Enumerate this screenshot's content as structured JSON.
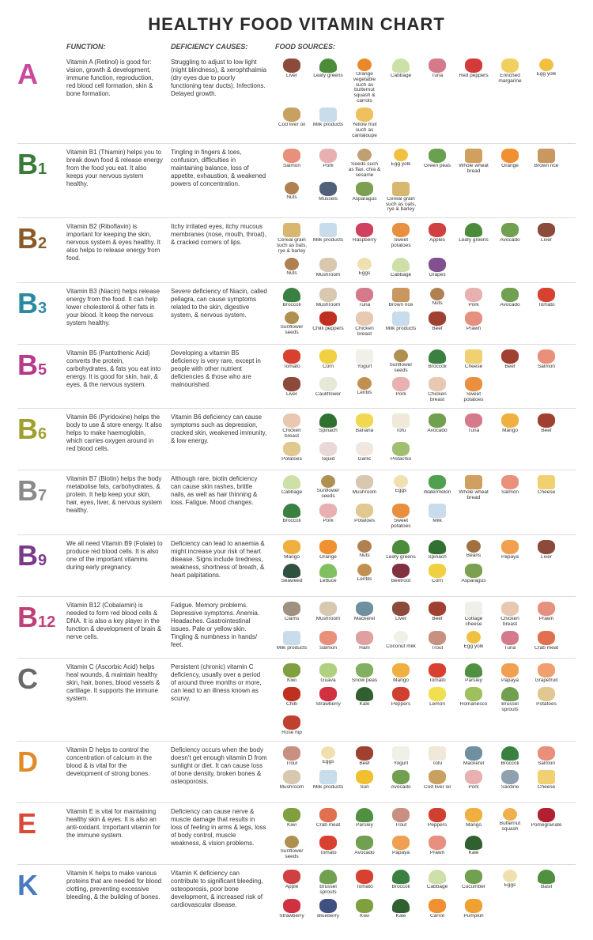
{
  "title": "HEALTHY FOOD VITAMIN CHART",
  "columns": {
    "function": "FUNCTION:",
    "deficiency": "DEFICIENCY CAUSES:",
    "food": "FOOD SOURCES:"
  },
  "food_colors": {
    "Liver": "#8b4a3a",
    "Leafy greens": "#4a8c3a",
    "Orange vegetable such as butternut squash & carrots": "#e88a2a",
    "Cabbage": "#cde0a8",
    "Tuna": "#d47a8a",
    "Red peppers": "#d43a3a",
    "Enriched margarine": "#f2d060",
    "Egg yolk": "#f2c040",
    "Cod liver oil": "#c8a060",
    "Milk products": "#c8dcec",
    "Yellow fruit such as cantaloupe": "#f0c060",
    "Salmon": "#e8907a",
    "Pork": "#e8b0b0",
    "Seeds such as flax, chia & sesame": "#c0a070",
    "Green peas": "#6aa050",
    "Whole wheat bread": "#d0a060",
    "Orange": "#f09030",
    "Brown rice": "#c89860",
    "Nuts": "#b08050",
    "Mussels": "#50607a",
    "Asparagus": "#7aa050",
    "Cereal grain such as oats, rye & barley": "#d8b870",
    "Cereal grain such as bats, rye & barley": "#d8b870",
    "Raspberry": "#d04060",
    "Sweet potatoes": "#e89040",
    "Apples": "#d04040",
    "Avocado": "#70a050",
    "Eggs": "#f0e0b0",
    "Mushroom": "#d8c8b0",
    "Grapes": "#805090",
    "Broccoli": "#3a8040",
    "Sunflower seeds": "#b09050",
    "Tomato": "#d84030",
    "Chilli peppers": "#c03020",
    "Chicken breast": "#e8c8b0",
    "Beef": "#a04030",
    "Prawn": "#e89080",
    "Yogurt": "#f0f0e8",
    "Corn": "#f0d040",
    "Cheese": "#f0d070",
    "Cauliflower": "#e8e8d8",
    "Lentils": "#c09050",
    "Banana": "#f0d850",
    "Spinach": "#307030",
    "Tofu": "#f0e8d8",
    "Mango": "#f0b040",
    "Potatoes": "#e0c890",
    "Squid": "#e8d8d8",
    "Garlic": "#f0e8e0",
    "Pistachio": "#a0c070",
    "Watermelon": "#50a050",
    "Whole wheat bread2": "#d0a060",
    "Milk": "#c8dcec",
    "Papaya": "#f0a050",
    "Lettuce": "#80c060",
    "Beans": "#a07040",
    "Seaweed": "#305040",
    "Beetroot": "#803040",
    "Clams": "#a09080",
    "Mackerel": "#7090a0",
    "Cottage cheese": "#f0f0e8",
    "Coconut milk": "#f0f0e8",
    "Ham": "#e0a0a0",
    "Trout": "#c89080",
    "Crab meat": "#e07050",
    "Kiwi": "#80a040",
    "Guava": "#b0d080",
    "Snow peas": "#80b060",
    "Parsley": "#509040",
    "Grapefruit": "#f0a070",
    "Chilli": "#c03020",
    "Strawberry": "#d03040",
    "Kale": "#306030",
    "Lemon": "#f0e050",
    "Romanesco": "#a0c060",
    "Brussel sprouts": "#70a050",
    "Rose hip": "#c04030",
    "Sun": "#f0c030",
    "Sardine": "#90a0b0",
    "Butternut squash": "#f0b050",
    "Peppers": "#d04030",
    "Pomegranate": "#b02030",
    "Apple": "#d04040",
    "Cucumber": "#70a050",
    "Basil": "#509040",
    "Blueberry": "#405080",
    "Carrot": "#f09030",
    "Pumpkin": "#f0a030"
  },
  "vitamins": [
    {
      "letter": "A",
      "sub": "",
      "color": "#c94a9c",
      "function": "Vitamin A (Retinol) is good for: vision, growth & development, immune function, reproduction, red blood cell formation, skin & bone formation.",
      "deficiency": "Struggling to adjust to low light (night blindness), & xerophthalmia (dry eyes due to poorly functioning tear ducts). Infections. Delayed growth.",
      "foods": [
        "Liver",
        "Leafy greens",
        "Orange vegetable such as butternut squash & carrots",
        "Cabbage",
        "Tuna",
        "Red peppers",
        "Enriched margarine",
        "Egg yolk",
        "Cod liver oil",
        "Milk products",
        "Yellow fruit such as cantaloupe"
      ]
    },
    {
      "letter": "B",
      "sub": "1",
      "color": "#3a7a3a",
      "function": "Vitamin B1 (Thiamin) helps you to break down food & release energy from the food you eat. It also keeps your nervous system healthy.",
      "deficiency": "Tingling in fingers & toes, confusion, difficulties in maintaining balance, loss of appetite, exhaustion, & weakened powers of concentration.",
      "foods": [
        "Salmon",
        "Pork",
        "Seeds such as flax, chia & sesame",
        "Egg yolk",
        "Green peas",
        "Whole wheat bread",
        "Orange",
        "Brown rice",
        "Nuts",
        "Mussels",
        "Asparagus",
        "Cereal grain such as oats, rye & barley"
      ]
    },
    {
      "letter": "B",
      "sub": "2",
      "color": "#8a5a2a",
      "function": "Vitamin B2 (Riboflavin) is important for keeping the skin, nervous system & eyes healthy. It also helps to release energy from food.",
      "deficiency": "Itchy irritated eyes, itchy mucous membranes (nose, mouth, throat), & cracked corners of lips.",
      "foods": [
        "Cereal grain such as bats, rye & barley",
        "Milk products",
        "Raspberry",
        "Sweet potatoes",
        "Apples",
        "Leafy greens",
        "Avocado",
        "Liver",
        "Nuts",
        "Mushroom",
        "Eggs",
        "Cabbage",
        "Grapes"
      ]
    },
    {
      "letter": "B",
      "sub": "3",
      "color": "#2a8aa0",
      "function": "Vitamin B3 (Niacin) helps release energy from the food. It can help lower cholesterol & other fats in your blood. It keep the nervous system healthy.",
      "deficiency": "Severe deficiency of Niacin, called pellagra, can cause symptoms related to the skin, digestive system, & nervous system.",
      "foods": [
        "Broccoli",
        "Mushroom",
        "Tuna",
        "Brown rice",
        "Nuts",
        "Pork",
        "Avocado",
        "Tomato",
        "Sunflower seeds",
        "Chilli peppers",
        "Chicken breast",
        "Milk products",
        "Beef",
        "Prawn"
      ]
    },
    {
      "letter": "B",
      "sub": "5",
      "color": "#b83a8a",
      "function": "Vitamin B5 (Pantothenic Acid) converts the protein, carbohydrates, & fats you eat into energy. It is good for skin, hair, & eyes, & the nervous system.",
      "deficiency": "Developing a vitamin B5 deficiency is very rare, except in people with other nutrient deficiencies & those who are malnourished.",
      "foods": [
        "Tomato",
        "Corn",
        "Yogurt",
        "Sunflower seeds",
        "Broccoli",
        "Cheese",
        "Beef",
        "Salmon",
        "Liver",
        "Cauliflower",
        "Lentils",
        "Pork",
        "Chicken breast",
        "Sweet potatoes"
      ]
    },
    {
      "letter": "B",
      "sub": "6",
      "color": "#a0a030",
      "function": "Vitamin B6 (Pyridoxine) helps the body to use & store energy. It also helps to make haemoglobin, which carries oxygen around in red blood cells.",
      "deficiency": "Vitamin B6 deficiency can cause symptoms such as depression, cracked skin, weakened immunity, & low energy.",
      "foods": [
        "Chicken breast",
        "Spinach",
        "Banana",
        "Tofu",
        "Avocado",
        "Tuna",
        "Mango",
        "Beef",
        "Potatoes",
        "Squid",
        "Garlic",
        "Pistachio"
      ]
    },
    {
      "letter": "B",
      "sub": "7",
      "color": "#8a8a8a",
      "function": "Vitamin B7 (Biotin) helps the body metabolise fats, carbohydrates, & protein. It help keep your skin, hair, eyes, liver, & nervous system healthy.",
      "deficiency": "Although rare, biotin deficiency can cause skin rashes, brittle nails, as well as hair thinning & loss. Fatigue. Mood changes.",
      "foods": [
        "Cabbage",
        "Sunflower seeds",
        "Mushroom",
        "Eggs",
        "Watermelon",
        "Whole wheat bread",
        "Salmon",
        "Cheese",
        "Broccoli",
        "Pork",
        "Potatoes",
        "Sweet potatoes",
        "Milk"
      ]
    },
    {
      "letter": "B",
      "sub": "9",
      "color": "#7a3a8a",
      "function": "We all need Vitamin B9 (Folate) to produce red blood cells. It is also one of the important vitamins during early pregnancy.",
      "deficiency": "Deficiency can lead to anaemia & might increase your risk of heart disease. Signs include tiredness, weakness, shortness of breath, & heart palpitations.",
      "foods": [
        "Mango",
        "Orange",
        "Nuts",
        "Leafy greens",
        "Spinach",
        "Beans",
        "Papaya",
        "Liver",
        "Seaweed",
        "Lettuce",
        "Lentils",
        "Beetroot",
        "Corn",
        "Asparagus"
      ]
    },
    {
      "letter": "B",
      "sub": "12",
      "color": "#c0407a",
      "function": "Vitamin B12 (Cobalamin) is needed to form red blood cells & DNA. It is also a key player in the function & development of brain & nerve cells.",
      "deficiency": "Fatigue. Memory problems. Depressive symptoms. Anemia. Headaches. Gastrointestinal issues. Pale or yellow skin. Tingling & numbness in hands/ feet.",
      "foods": [
        "Clams",
        "Mushroom",
        "Mackerel",
        "Liver",
        "Beef",
        "Cottage cheese",
        "Chicken breast",
        "Prawn",
        "Milk products",
        "Salmon",
        "Ham",
        "Coconut milk",
        "Trout",
        "Egg yolk",
        "Tuna",
        "Crab meat"
      ]
    },
    {
      "letter": "C",
      "sub": "",
      "color": "#6a6a6a",
      "function": "Vitamin C (Ascorbic Acid) helps heal wounds, & maintain healthy skin, hair, bones, blood vessels & cartilage. It supports the immune system.",
      "deficiency": "Persistent (chronic) vitamin C deficiency, usually over a period of around three months or more, can lead to an illness known as scurvy.",
      "foods": [
        "Kiwi",
        "Guava",
        "Snow peas",
        "Mango",
        "Tomato",
        "Parsley",
        "Papaya",
        "Grapefruit",
        "Chilli",
        "Strawberry",
        "Kale",
        "Peppers",
        "Lemon",
        "Romanesco",
        "Brussel sprouts",
        "Potatoes",
        "Rose hip"
      ]
    },
    {
      "letter": "D",
      "sub": "",
      "color": "#e08a2a",
      "function": "Vitamin D helps to control the concentration of calcium in the blood & is vital for the development of strong bones.",
      "deficiency": "Deficiency occurs when the body doesn't get enough vitamin D from sunlight or diet. It can cause loss of bone density, broken bones & osteoporosis.",
      "foods": [
        "Trout",
        "Eggs",
        "Beef",
        "Yogurt",
        "Tofu",
        "Mackerel",
        "Broccoli",
        "Salmon",
        "Mushroom",
        "Milk products",
        "Sun",
        "Avocado",
        "Cod liver oil",
        "Pork",
        "Sardine",
        "Cheese"
      ]
    },
    {
      "letter": "E",
      "sub": "",
      "color": "#d84a3a",
      "function": "Vitamin E is vital for maintaining healthy skin & eyes. It is also an anti-oxidant. Important vitamin for the immune system.",
      "deficiency": "Deficiency can cause nerve & muscle damage that results in loss of feeling in arms & legs, loss of body control, muscle weakness, & vision problems.",
      "foods": [
        "Kiwi",
        "Crab meat",
        "Parsley",
        "Trout",
        "Peppers",
        "Mango",
        "Butternut squash",
        "Pomegranate",
        "Sunflower seeds",
        "Tomato",
        "Avocado",
        "Papaya",
        "Prawn",
        "Kale"
      ]
    },
    {
      "letter": "K",
      "sub": "",
      "color": "#4a7ac0",
      "function": "Vitamin K helps to make various proteins that are needed for blood clotting, preventing excessive bleeding, & the building of bones.",
      "deficiency": "Vitamin K deficiency can contribute to significant bleeding, osteoporosis, poor bone development, & increased risk of cardiovascular disease.",
      "foods": [
        "Apple",
        "Brussel sprouts",
        "Tomato",
        "Broccoli",
        "Cabbage",
        "Cucumber",
        "Eggs",
        "Basil",
        "Strawberry",
        "Blueberry",
        "Kiwi",
        "Kale",
        "Carrot",
        "Pumpkin"
      ]
    }
  ]
}
